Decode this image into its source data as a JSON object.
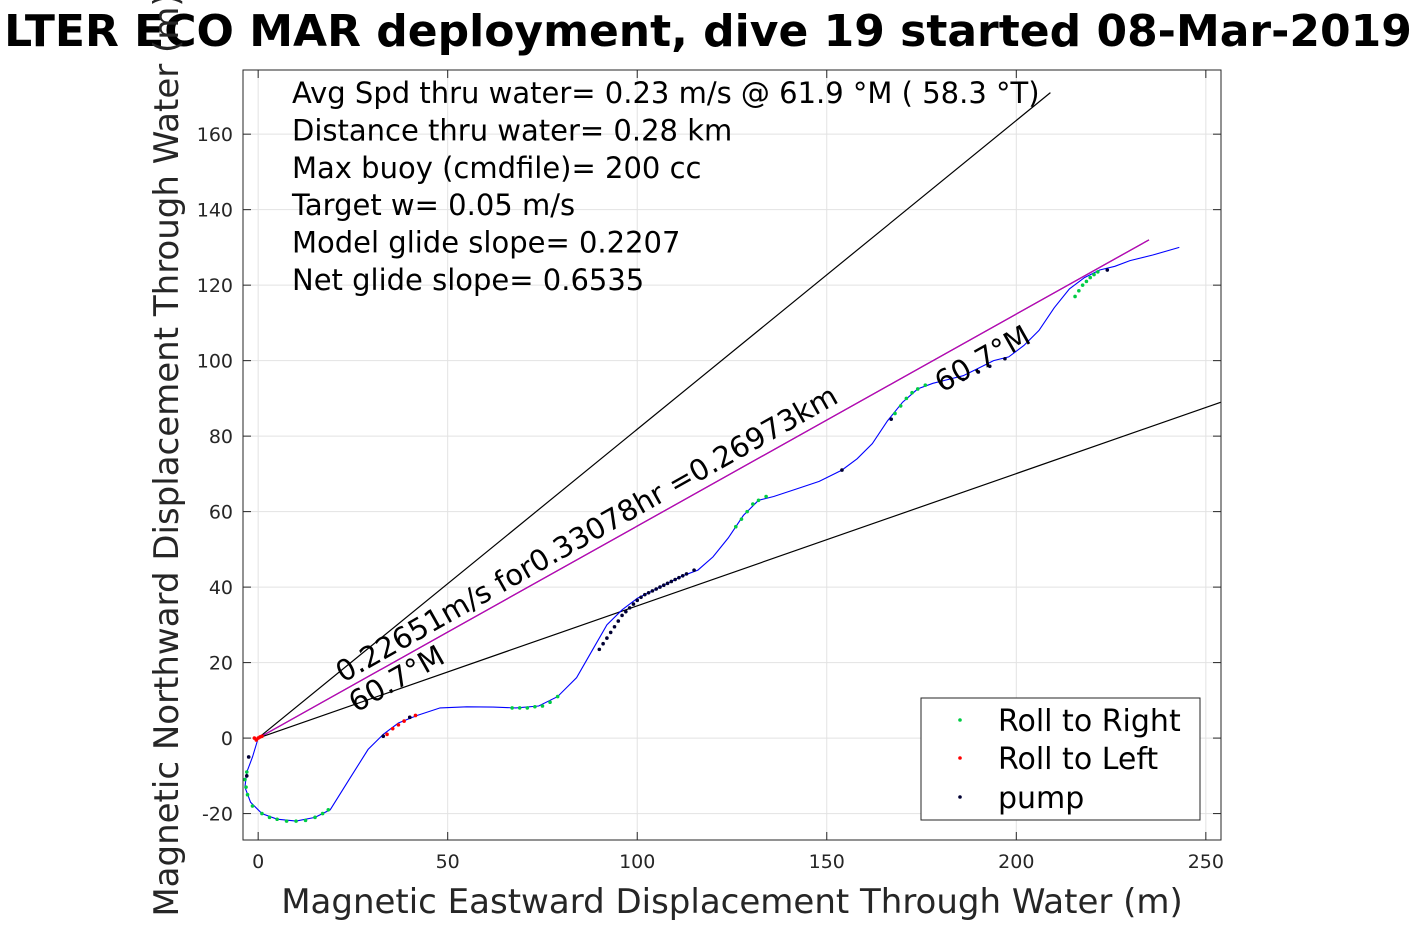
{
  "chart_data": {
    "type": "scatter",
    "title": "LTER ECO MAR deployment, dive 19 started 08-Mar-2019",
    "xlabel": "Magnetic Eastward Displacement Through Water (m)",
    "ylabel": "Magnetic Northward Displacement Through Water (m)",
    "xlim": [
      -4,
      254
    ],
    "ylim": [
      -27,
      177
    ],
    "xticks": [
      0,
      50,
      100,
      150,
      200,
      250
    ],
    "yticks": [
      -20,
      0,
      20,
      40,
      60,
      80,
      100,
      120,
      140,
      160
    ],
    "grid": true,
    "legend_position": "bottom-right",
    "info_lines": [
      "Avg Spd thru water=  0.23 m/s @  61.9 °M ( 58.3 °T)",
      "Distance thru water=  0.28 km",
      "Max buoy (cmdfile)= 200 cc",
      "Target w= 0.05 m/s",
      "Model glide slope= 0.2207",
      "Net glide slope= 0.6535"
    ],
    "annotations": {
      "current_label": "0.22651m/s for0.33078hr =0.26973km",
      "heading_lower": "60.7°M",
      "heading_upper": "60.7°M"
    },
    "track": {
      "name": "track",
      "color": "#0000ff",
      "x": [
        0,
        -1.5,
        -3,
        -3.5,
        -2,
        1,
        5,
        10,
        15,
        19,
        24,
        29,
        33,
        37,
        42,
        48,
        55,
        62,
        68,
        74,
        79,
        84,
        88,
        92,
        96,
        100,
        104,
        108,
        112,
        116,
        120,
        124,
        128,
        132,
        136,
        142,
        148,
        154,
        158,
        162,
        166,
        170,
        174,
        178,
        182,
        186,
        190,
        194,
        198,
        202,
        206,
        210,
        214,
        218,
        222,
        226,
        230,
        236,
        243
      ],
      "y": [
        0,
        -5,
        -9,
        -13,
        -17,
        -20,
        -21.5,
        -22,
        -21,
        -19,
        -11,
        -3,
        1,
        4,
        6,
        8,
        8.3,
        8.2,
        8,
        8.5,
        11,
        16,
        23,
        30,
        34,
        37,
        39,
        41,
        43,
        44.5,
        48,
        53,
        59,
        63,
        64,
        66,
        68,
        71,
        74,
        78,
        84,
        89,
        92.5,
        94,
        95,
        96,
        98,
        100,
        101,
        104,
        108,
        114,
        119,
        122,
        124,
        125,
        126.5,
        128,
        130
      ]
    },
    "lines": [
      {
        "name": "upper bound",
        "color": "#000000",
        "x": [
          0,
          209
        ],
        "y": [
          0,
          171
        ]
      },
      {
        "name": "lower bound",
        "color": "#000000",
        "x": [
          0,
          254
        ],
        "y": [
          0,
          89
        ]
      },
      {
        "name": "current",
        "color": "#000000",
        "x": [
          0,
          235
        ],
        "y": [
          0,
          132
        ]
      },
      {
        "name": "current overlay",
        "color": "#c000c0",
        "x": [
          0,
          235
        ],
        "y": [
          0,
          132
        ]
      }
    ],
    "series": [
      {
        "name": "Roll to Right",
        "color": "#00cc44",
        "x": [
          -3,
          -3.5,
          -3.2,
          -2.8,
          -1.5,
          1,
          3,
          5,
          7.5,
          10,
          12.5,
          15,
          17,
          18.5,
          67,
          69,
          71,
          73,
          75,
          77,
          79,
          126,
          127.5,
          129,
          130.5,
          132,
          134,
          168,
          169.5,
          171,
          172.5,
          174,
          176,
          215.5,
          216.5,
          217.5,
          218.5,
          219.5,
          220.5,
          221.5
        ],
        "y": [
          -9,
          -11,
          -13,
          -15,
          -18,
          -20,
          -21,
          -21.5,
          -22,
          -22,
          -21.8,
          -21,
          -20,
          -19,
          8,
          8,
          8,
          8.3,
          8.5,
          9.5,
          11,
          56,
          58,
          60,
          62,
          63,
          64,
          86,
          88,
          90,
          91.5,
          92.5,
          93.5,
          117,
          118.5,
          120,
          121,
          122,
          122.8,
          123.5
        ]
      },
      {
        "name": "Roll to Left",
        "color": "#ff0000",
        "x": [
          -1,
          -0.5,
          0,
          0.5,
          1,
          34,
          35.5,
          37,
          38.5,
          40,
          41.5
        ],
        "y": [
          0,
          -0.5,
          0,
          0.3,
          0.5,
          1,
          2.5,
          3.5,
          4.5,
          5.5,
          6
        ]
      },
      {
        "name": "pump",
        "color": "#000033",
        "x": [
          -3,
          -2.5,
          33,
          40,
          90,
          91,
          92,
          93,
          94,
          95,
          96,
          97,
          98,
          99,
          100,
          101,
          102,
          103,
          104,
          105,
          106,
          107,
          108,
          109,
          110,
          111,
          112,
          113,
          115,
          154,
          167,
          186,
          190,
          193,
          197,
          224
        ],
        "y": [
          -10,
          -5,
          0.5,
          5.5,
          23.5,
          25,
          26.5,
          28,
          29.5,
          31,
          32.5,
          33.5,
          34.5,
          35.5,
          36.5,
          37.3,
          38,
          38.5,
          39,
          39.5,
          40,
          40.5,
          41,
          41.5,
          42,
          42.5,
          43,
          43.5,
          44.5,
          71,
          84.5,
          95,
          97,
          98.5,
          100.5,
          124
        ]
      }
    ]
  },
  "legend": {
    "items": [
      {
        "label": "Roll to Right",
        "color": "#00cc44"
      },
      {
        "label": "Roll to Left",
        "color": "#ff0000"
      },
      {
        "label": "pump",
        "color": "#000033"
      }
    ]
  }
}
